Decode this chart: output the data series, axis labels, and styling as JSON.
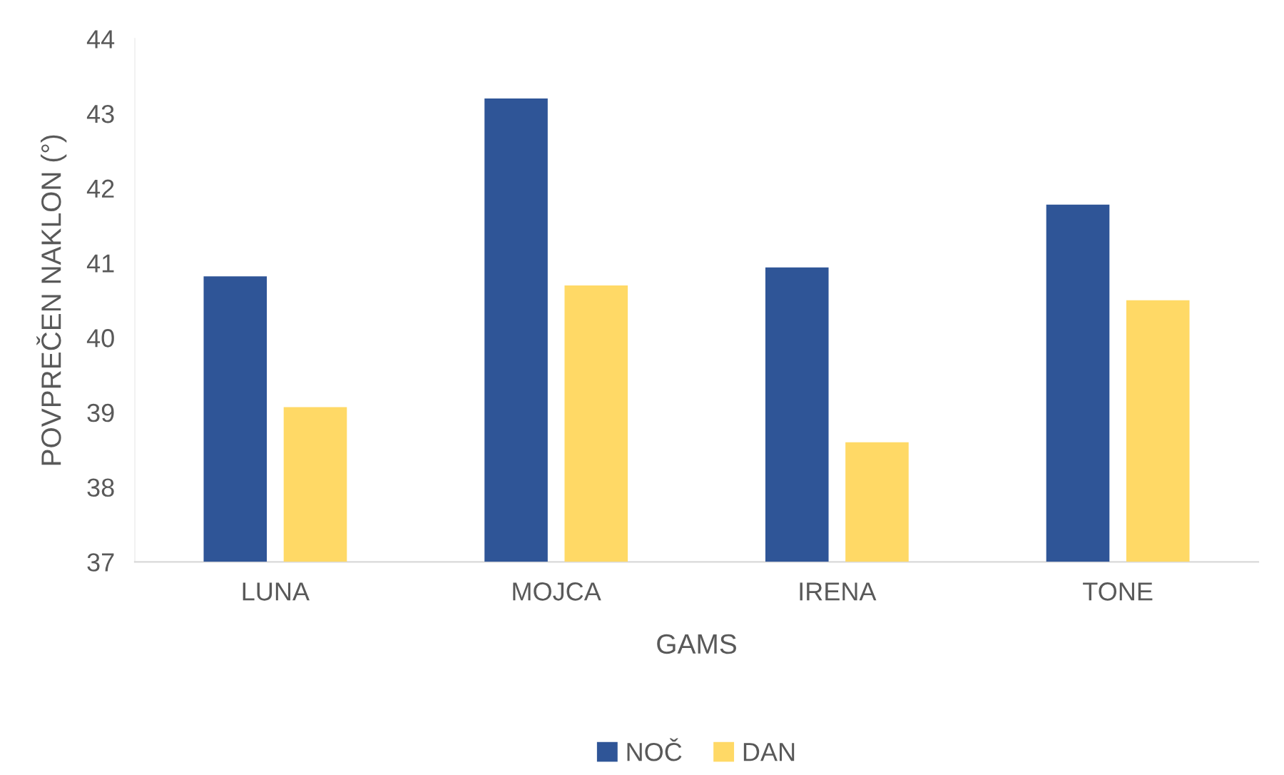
{
  "chart_data": {
    "type": "bar",
    "xlabel": "GAMS",
    "ylabel": "POVPREČEN NAKLON (°)",
    "categories": [
      "LUNA",
      "MOJCA",
      "IRENA",
      "TONE"
    ],
    "series": [
      {
        "name": "NOČ",
        "color": "#2f5597",
        "values": [
          40.82,
          43.2,
          40.94,
          41.78
        ]
      },
      {
        "name": "DAN",
        "color": "#ffd966",
        "values": [
          39.07,
          40.7,
          38.6,
          40.5
        ]
      }
    ],
    "ylim": [
      37,
      44
    ],
    "yticks": [
      37,
      38,
      39,
      40,
      41,
      42,
      43,
      44
    ],
    "grid": false,
    "legend": "bottom"
  }
}
